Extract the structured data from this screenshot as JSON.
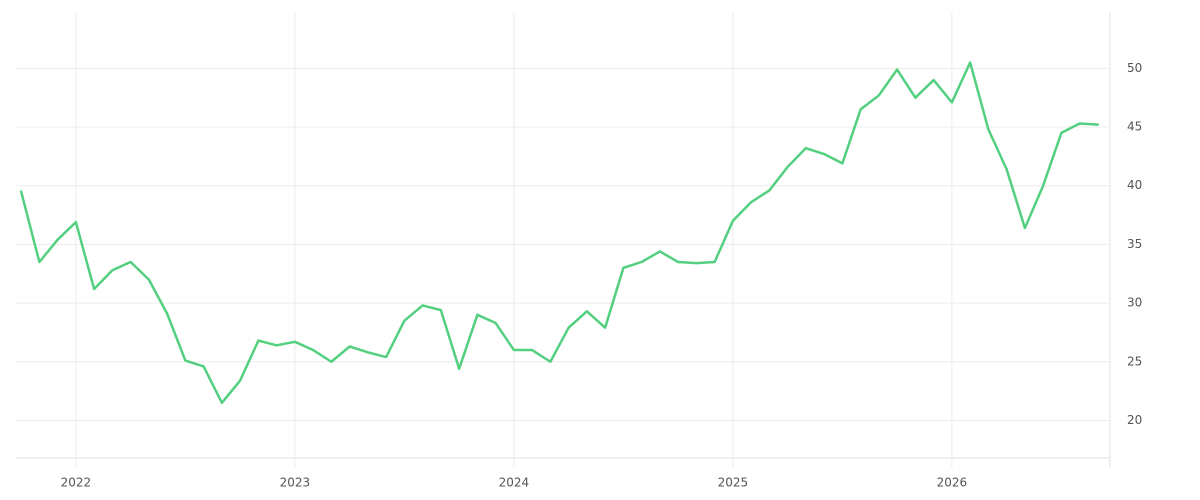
{
  "chart_data": {
    "type": "line",
    "categories": [
      null,
      null,
      null,
      "2022",
      null,
      null,
      null,
      null,
      null,
      null,
      null,
      null,
      null,
      null,
      null,
      "2023",
      null,
      null,
      null,
      null,
      null,
      null,
      null,
      null,
      null,
      null,
      null,
      "2024",
      null,
      null,
      null,
      null,
      null,
      null,
      null,
      null,
      null,
      null,
      null,
      "2025",
      null,
      null,
      null,
      null,
      null,
      null,
      null,
      null,
      null,
      null,
      null,
      "2026",
      null,
      null,
      null,
      null,
      null,
      null,
      null,
      null
    ],
    "values": [
      39.5,
      33.5,
      35.4,
      36.9,
      31.2,
      32.8,
      33.5,
      32.0,
      29.1,
      25.1,
      24.6,
      21.5,
      23.4,
      26.8,
      26.4,
      26.7,
      26.0,
      25.0,
      26.3,
      25.8,
      25.4,
      28.5,
      29.8,
      29.4,
      24.4,
      29.0,
      28.3,
      26.0,
      26.0,
      25.0,
      27.9,
      29.3,
      27.9,
      33.0,
      33.5,
      34.4,
      33.5,
      33.4,
      33.5,
      37.0,
      38.6,
      39.6,
      41.6,
      43.2,
      42.7,
      41.9,
      46.5,
      47.7,
      49.9,
      47.5,
      49.0,
      47.1,
      50.5,
      44.8,
      41.4,
      36.4,
      40.0,
      44.5,
      45.3,
      45.2
    ],
    "color": "#53d07f",
    "ylim": [
      16.8,
      54.8
    ],
    "yticks": [
      20,
      25,
      30,
      35,
      40,
      45,
      50
    ],
    "grid": true
  }
}
